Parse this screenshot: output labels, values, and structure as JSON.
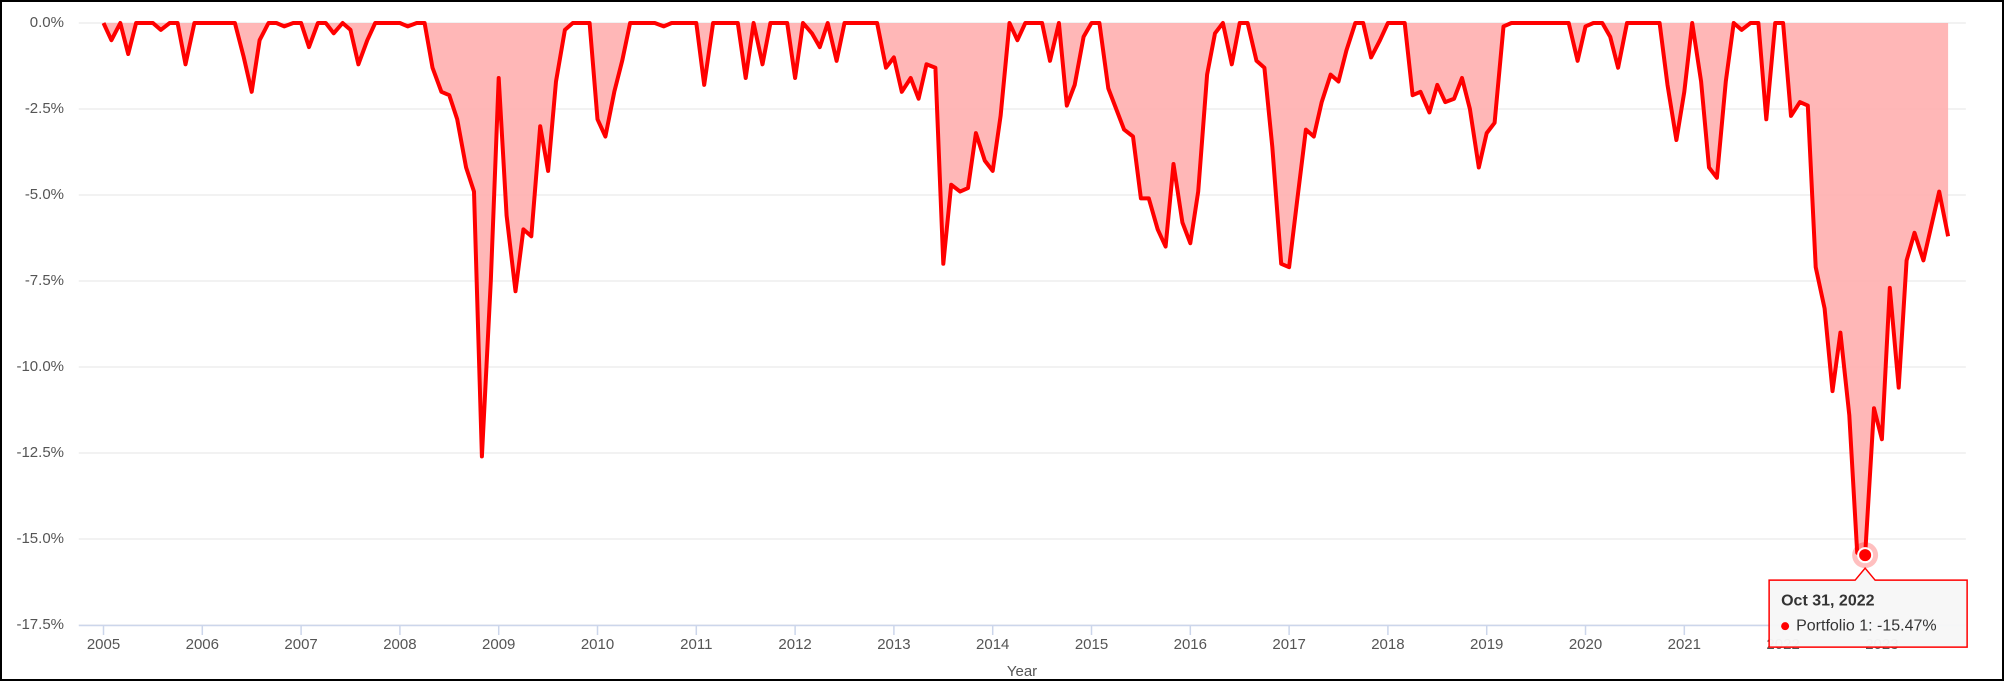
{
  "chart_data": {
    "type": "area",
    "x_label": "Year",
    "series": [
      {
        "name": "Portfolio 1",
        "color": "#ff0000",
        "fill": "#ffb3b3",
        "x": [
          2005,
          2005.08,
          2005.17,
          2005.25,
          2005.33,
          2005.42,
          2005.5,
          2005.58,
          2005.67,
          2005.75,
          2005.83,
          2005.92,
          2006,
          2006.08,
          2006.17,
          2006.25,
          2006.33,
          2006.42,
          2006.5,
          2006.58,
          2006.67,
          2006.75,
          2006.83,
          2006.92,
          2007,
          2007.08,
          2007.17,
          2007.25,
          2007.33,
          2007.42,
          2007.5,
          2007.58,
          2007.67,
          2007.75,
          2007.83,
          2007.92,
          2008,
          2008.08,
          2008.17,
          2008.25,
          2008.33,
          2008.42,
          2008.5,
          2008.58,
          2008.67,
          2008.75,
          2008.83,
          2008.92,
          2009,
          2009.08,
          2009.17,
          2009.25,
          2009.33,
          2009.42,
          2009.5,
          2009.58,
          2009.67,
          2009.75,
          2009.83,
          2009.92,
          2010,
          2010.08,
          2010.17,
          2010.25,
          2010.33,
          2010.42,
          2010.5,
          2010.58,
          2010.67,
          2010.75,
          2010.83,
          2010.92,
          2011,
          2011.08,
          2011.17,
          2011.25,
          2011.33,
          2011.42,
          2011.5,
          2011.58,
          2011.67,
          2011.75,
          2011.83,
          2011.92,
          2012,
          2012.08,
          2012.17,
          2012.25,
          2012.33,
          2012.42,
          2012.5,
          2012.58,
          2012.67,
          2012.75,
          2012.83,
          2012.92,
          2013,
          2013.08,
          2013.17,
          2013.25,
          2013.33,
          2013.42,
          2013.5,
          2013.58,
          2013.67,
          2013.75,
          2013.83,
          2013.92,
          2014,
          2014.08,
          2014.17,
          2014.25,
          2014.33,
          2014.42,
          2014.5,
          2014.58,
          2014.67,
          2014.75,
          2014.83,
          2014.92,
          2015,
          2015.08,
          2015.17,
          2015.25,
          2015.33,
          2015.42,
          2015.5,
          2015.58,
          2015.67,
          2015.75,
          2015.83,
          2015.92,
          2016,
          2016.08,
          2016.17,
          2016.25,
          2016.33,
          2016.42,
          2016.5,
          2016.58,
          2016.67,
          2016.75,
          2016.83,
          2016.92,
          2017,
          2017.08,
          2017.17,
          2017.25,
          2017.33,
          2017.42,
          2017.5,
          2017.58,
          2017.67,
          2017.75,
          2017.83,
          2017.92,
          2018,
          2018.08,
          2018.17,
          2018.25,
          2018.33,
          2018.42,
          2018.5,
          2018.58,
          2018.67,
          2018.75,
          2018.83,
          2018.92,
          2019,
          2019.08,
          2019.17,
          2019.25,
          2019.33,
          2019.42,
          2019.5,
          2019.58,
          2019.67,
          2019.75,
          2019.83,
          2019.92,
          2020,
          2020.08,
          2020.17,
          2020.25,
          2020.33,
          2020.42,
          2020.5,
          2020.58,
          2020.67,
          2020.75,
          2020.83,
          2020.92,
          2021,
          2021.08,
          2021.17,
          2021.25,
          2021.33,
          2021.42,
          2021.5,
          2021.58,
          2021.67,
          2021.75,
          2021.83,
          2021.92,
          2022,
          2022.08,
          2022.17,
          2022.25,
          2022.33,
          2022.42,
          2022.5,
          2022.58,
          2022.67,
          2022.75,
          2022.83,
          2022.92,
          2023,
          2023.08,
          2023.17,
          2023.25,
          2023.33,
          2023.42,
          2023.5,
          2023.58,
          2023.67
        ],
        "values": [
          0,
          -0.5,
          0,
          -0.9,
          0,
          0,
          0,
          -0.2,
          0,
          0,
          -1.2,
          0,
          0,
          0,
          0,
          0,
          0,
          -1.0,
          -2.0,
          -0.5,
          0,
          0,
          -0.1,
          0,
          0,
          -0.7,
          0,
          0,
          -0.3,
          0,
          -0.2,
          -1.2,
          -0.5,
          0,
          0,
          0,
          0,
          -0.1,
          0,
          0,
          -1.3,
          -2.0,
          -2.1,
          -2.8,
          -4.2,
          -4.9,
          -12.6,
          -7.5,
          -1.6,
          -5.6,
          -7.8,
          -6.0,
          -6.2,
          -3.0,
          -4.3,
          -1.7,
          -0.2,
          0,
          0,
          0,
          -2.8,
          -3.3,
          -2.0,
          -1.1,
          0,
          0,
          0,
          0,
          -0.1,
          0,
          0,
          0,
          0,
          -1.8,
          0,
          0,
          0,
          0,
          -1.6,
          0,
          -1.2,
          0,
          0,
          0,
          -1.6,
          0,
          -0.3,
          -0.7,
          0,
          -1.1,
          0,
          0,
          0,
          0,
          0,
          -1.3,
          -1.0,
          -2.0,
          -1.6,
          -2.2,
          -1.2,
          -1.3,
          -7.0,
          -4.7,
          -4.9,
          -4.8,
          -3.2,
          -4.0,
          -4.3,
          -2.7,
          0,
          -0.5,
          0,
          0,
          0,
          -1.1,
          0,
          -2.4,
          -1.8,
          -0.4,
          0,
          0,
          -1.9,
          -2.5,
          -3.1,
          -3.3,
          -5.1,
          -5.1,
          -6.0,
          -6.5,
          -4.1,
          -5.8,
          -6.4,
          -4.9,
          -1.5,
          -0.3,
          0,
          -1.2,
          0,
          0,
          -1.1,
          -1.3,
          -3.6,
          -7.0,
          -7.1,
          -5.2,
          -3.1,
          -3.3,
          -2.3,
          -1.5,
          -1.7,
          -0.8,
          0,
          0,
          -1.0,
          -0.5,
          0,
          0,
          0,
          -2.1,
          -2.0,
          -2.6,
          -1.8,
          -2.3,
          -2.2,
          -1.6,
          -2.5,
          -4.2,
          -3.2,
          -2.9,
          -0.1,
          0,
          0,
          0,
          0,
          0,
          0,
          0,
          0,
          -1.1,
          -0.1,
          0,
          0,
          -0.4,
          -1.3,
          0,
          0,
          0,
          0,
          0,
          -1.8,
          -3.4,
          -2.0,
          0,
          -1.7,
          -4.2,
          -4.5,
          -1.7,
          0,
          -0.2,
          0,
          0,
          -2.8,
          0,
          0,
          -2.7,
          -2.3,
          -2.4,
          -7.1,
          -8.3,
          -10.7,
          -9.0,
          -11.4,
          -15.4,
          -15.47,
          -11.2,
          -12.1,
          -7.7,
          -10.6,
          -6.9,
          -6.1,
          -6.9,
          -5.9,
          -4.9,
          -6.2
        ]
      }
    ],
    "xlim": [
      2004.75,
      2023.85
    ],
    "xticks": [
      2005,
      2006,
      2007,
      2008,
      2009,
      2010,
      2011,
      2012,
      2013,
      2014,
      2015,
      2016,
      2017,
      2018,
      2019,
      2020,
      2021,
      2022,
      2023
    ],
    "ylim": [
      -17.5,
      0
    ],
    "yticks": [
      {
        "value": 0,
        "label": "0.0%"
      },
      {
        "value": -2.5,
        "label": "-2.5%"
      },
      {
        "value": -5,
        "label": "-5.0%"
      },
      {
        "value": -7.5,
        "label": "-7.5%"
      },
      {
        "value": -10,
        "label": "-10.0%"
      },
      {
        "value": -12.5,
        "label": "-12.5%"
      },
      {
        "value": -15,
        "label": "-15.0%"
      },
      {
        "value": -17.5,
        "label": "-17.5%"
      }
    ],
    "grid": true,
    "tooltip": {
      "x": 2022.83,
      "y": -15.47,
      "title": "Oct 31, 2022",
      "text": "Portfolio 1: -15.47%"
    }
  }
}
